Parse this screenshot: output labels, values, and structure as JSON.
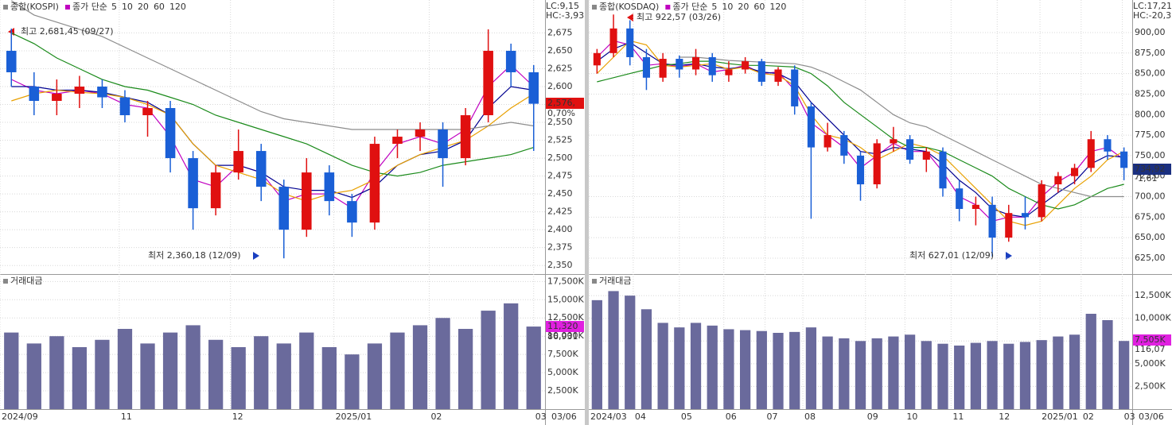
{
  "chart_data": [
    {
      "type": "candlestick",
      "title": "종합(KOSPI)",
      "legend_label": "종가 단순",
      "open": [
        2650,
        2600,
        2580,
        2590,
        2600,
        2585,
        2560,
        2570,
        2500,
        2430,
        2480,
        2510,
        2460,
        2400,
        2480,
        2440,
        2410,
        2520,
        2530,
        2540,
        2500,
        2560,
        2650,
        2620
      ],
      "high": [
        2681,
        2620,
        2610,
        2615,
        2610,
        2595,
        2580,
        2580,
        2510,
        2490,
        2540,
        2520,
        2470,
        2500,
        2490,
        2450,
        2530,
        2540,
        2550,
        2550,
        2570,
        2680,
        2660,
        2630
      ],
      "low": [
        2600,
        2560,
        2560,
        2570,
        2570,
        2550,
        2530,
        2480,
        2400,
        2420,
        2470,
        2440,
        2360,
        2390,
        2420,
        2390,
        2400,
        2500,
        2510,
        2460,
        2490,
        2550,
        2600,
        2510
      ],
      "close": [
        2620,
        2580,
        2590,
        2600,
        2585,
        2560,
        2570,
        2500,
        2430,
        2480,
        2510,
        2460,
        2400,
        2480,
        2440,
        2410,
        2520,
        2530,
        2540,
        2500,
        2560,
        2650,
        2620,
        2576
      ],
      "up_color": "#e01010",
      "down_color": "#1a5fd6",
      "ma": [
        {
          "period": 5,
          "color": "#c000c0",
          "values": [
            2610,
            2595,
            2590,
            2595,
            2590,
            2575,
            2570,
            2530,
            2470,
            2460,
            2490,
            2480,
            2440,
            2450,
            2450,
            2430,
            2480,
            2520,
            2530,
            2520,
            2540,
            2600,
            2630,
            2600
          ]
        },
        {
          "period": 10,
          "color": "#000090",
          "values": [
            2600,
            2600,
            2595,
            2595,
            2592,
            2585,
            2578,
            2560,
            2520,
            2490,
            2490,
            2480,
            2460,
            2455,
            2455,
            2445,
            2460,
            2490,
            2505,
            2510,
            2525,
            2570,
            2600,
            2595
          ]
        },
        {
          "period": 20,
          "color": "#e8a000",
          "values": [
            2580,
            2590,
            2595,
            2592,
            2590,
            2585,
            2575,
            2560,
            2520,
            2490,
            2480,
            2470,
            2450,
            2440,
            2450,
            2455,
            2470,
            2490,
            2505,
            2515,
            2525,
            2545,
            2570,
            2590
          ]
        },
        {
          "period": 60,
          "color": "#1a8a1a",
          "values": [
            2675,
            2660,
            2640,
            2625,
            2610,
            2600,
            2595,
            2585,
            2575,
            2560,
            2550,
            2540,
            2530,
            2520,
            2505,
            2490,
            2480,
            2475,
            2480,
            2490,
            2495,
            2500,
            2505,
            2515
          ]
        },
        {
          "period": 120,
          "color": "#8c8c8c",
          "values": [
            2720,
            2700,
            2690,
            2680,
            2670,
            2655,
            2640,
            2625,
            2610,
            2595,
            2580,
            2565,
            2555,
            2550,
            2545,
            2540,
            2540,
            2540,
            2540,
            2540,
            2540,
            2545,
            2550,
            2545
          ]
        }
      ],
      "ylim": [
        2338,
        2721
      ],
      "yticks": [
        {
          "value": 2350,
          "label": "2,350"
        },
        {
          "value": 2375,
          "label": "2,375"
        },
        {
          "value": 2400,
          "label": "2,400"
        },
        {
          "value": 2425,
          "label": "2,425"
        },
        {
          "value": 2450,
          "label": "2,450"
        },
        {
          "value": 2475,
          "label": "2,475"
        },
        {
          "value": 2500,
          "label": "2,500"
        },
        {
          "value": 2525,
          "label": "2,525"
        },
        {
          "value": 2550,
          "label": "2,550"
        },
        {
          "value": 2575,
          "label": "2,575"
        },
        {
          "value": 2600,
          "label": "2,600"
        },
        {
          "value": 2625,
          "label": "2,625"
        },
        {
          "value": 2650,
          "label": "2,650"
        },
        {
          "value": 2675,
          "label": "2,675"
        }
      ],
      "xticks": [
        {
          "value": 0,
          "label": "2024/09"
        },
        {
          "value": 5.25,
          "label": "11"
        },
        {
          "value": 10.15,
          "label": "12"
        },
        {
          "value": 14.7,
          "label": "2025/01"
        },
        {
          "value": 18.9,
          "label": "02"
        },
        {
          "value": 23.5,
          "label": "03"
        }
      ],
      "last_date": "03/06",
      "annotations": [
        "최고 2,681,45 (09/27)",
        "최저 2,360,18 (12/09)"
      ],
      "status": [
        "LC:9,15",
        "HC:-3,93"
      ],
      "tags": [
        "2,576,",
        "0,70%"
      ]
    },
    {
      "type": "bar",
      "title": "거래대금",
      "color": "#6a6a9c",
      "values": [
        10500,
        9000,
        10000,
        8500,
        9500,
        11000,
        9000,
        10500,
        11500,
        9500,
        8500,
        10000,
        9000,
        10500,
        8500,
        7500,
        9000,
        10500,
        11500,
        12500,
        11000,
        13500,
        14500,
        11320
      ],
      "ylim": [
        0,
        18300
      ],
      "yticks": [
        {
          "value": 2500,
          "label": "2,500K"
        },
        {
          "value": 5000,
          "label": "5,000K"
        },
        {
          "value": 7500,
          "label": "7,500K"
        },
        {
          "value": 10000,
          "label": "10,000K"
        },
        {
          "value": 12500,
          "label": "12,500K"
        },
        {
          "value": 15000,
          "label": "15,000K"
        },
        {
          "value": 17500,
          "label": "17,500K"
        }
      ],
      "tags": [
        "11,320",
        "86,931"
      ]
    },
    {
      "type": "candlestick",
      "title": "종합(KOSDAQ)",
      "legend_label": "종가 단순",
      "open": [
        860,
        875,
        905,
        870,
        845,
        868,
        855,
        870,
        848,
        855,
        865,
        840,
        855,
        810,
        760,
        775,
        750,
        715,
        765,
        770,
        745,
        755,
        710,
        685,
        690,
        650,
        680,
        675,
        715,
        725,
        735,
        770,
        755
      ],
      "high": [
        880,
        922,
        915,
        880,
        875,
        872,
        880,
        875,
        865,
        870,
        868,
        858,
        860,
        815,
        790,
        780,
        755,
        770,
        785,
        775,
        760,
        760,
        720,
        700,
        700,
        690,
        700,
        720,
        730,
        740,
        780,
        775,
        760
      ],
      "low": [
        850,
        870,
        860,
        830,
        840,
        845,
        848,
        840,
        840,
        850,
        835,
        835,
        800,
        673,
        755,
        740,
        695,
        710,
        755,
        740,
        730,
        700,
        670,
        665,
        627,
        645,
        660,
        670,
        705,
        715,
        730,
        745,
        720
      ],
      "close": [
        875,
        905,
        870,
        845,
        868,
        855,
        870,
        848,
        855,
        865,
        840,
        855,
        810,
        760,
        775,
        750,
        715,
        765,
        770,
        745,
        755,
        710,
        685,
        690,
        650,
        680,
        675,
        715,
        725,
        735,
        770,
        755,
        735
      ],
      "up_color": "#e01010",
      "down_color": "#1a5fd6",
      "ma": [
        {
          "period": 5,
          "color": "#c000c0",
          "values": [
            870,
            890,
            885,
            860,
            862,
            858,
            862,
            852,
            855,
            860,
            850,
            852,
            830,
            790,
            775,
            760,
            735,
            750,
            765,
            755,
            755,
            730,
            700,
            690,
            670,
            675,
            675,
            700,
            718,
            730,
            755,
            760,
            745
          ]
        },
        {
          "period": 10,
          "color": "#000090",
          "values": [
            865,
            880,
            888,
            875,
            862,
            860,
            862,
            858,
            856,
            858,
            852,
            850,
            840,
            815,
            795,
            775,
            755,
            752,
            760,
            758,
            755,
            740,
            720,
            705,
            685,
            678,
            675,
            690,
            705,
            718,
            740,
            750,
            748
          ]
        },
        {
          "period": 20,
          "color": "#e8a000",
          "values": [
            850,
            870,
            890,
            885,
            860,
            858,
            860,
            862,
            855,
            858,
            850,
            848,
            835,
            800,
            775,
            770,
            760,
            745,
            755,
            765,
            760,
            750,
            730,
            710,
            690,
            670,
            665,
            670,
            690,
            710,
            725,
            745,
            755
          ]
        },
        {
          "period": 60,
          "color": "#1a8a1a",
          "values": [
            840,
            845,
            850,
            855,
            860,
            862,
            865,
            865,
            862,
            860,
            860,
            859,
            858,
            850,
            835,
            815,
            800,
            785,
            770,
            760,
            760,
            755,
            745,
            735,
            725,
            710,
            700,
            690,
            685,
            690,
            700,
            710,
            715
          ]
        },
        {
          "period": 120,
          "color": "#8c8c8c",
          "values": [
            null,
            null,
            null,
            null,
            null,
            870,
            870,
            868,
            866,
            865,
            864,
            863,
            862,
            858,
            850,
            840,
            830,
            815,
            800,
            790,
            785,
            775,
            765,
            755,
            745,
            735,
            725,
            715,
            710,
            705,
            700,
            700,
            700
          ]
        }
      ],
      "ylim": [
        605.6,
        939.7
      ],
      "yticks": [
        {
          "value": 625,
          "label": "625,00"
        },
        {
          "value": 650,
          "label": "650,00"
        },
        {
          "value": 675,
          "label": "675,00"
        },
        {
          "value": 700,
          "label": "700,00"
        },
        {
          "value": 725,
          "label": "725,00"
        },
        {
          "value": 750,
          "label": "750,00"
        },
        {
          "value": 775,
          "label": "775,00"
        },
        {
          "value": 800,
          "label": "800,00"
        },
        {
          "value": 825,
          "label": "825,00"
        },
        {
          "value": 850,
          "label": "850,00"
        },
        {
          "value": 875,
          "label": "875,00"
        },
        {
          "value": 900,
          "label": "900,00"
        }
      ],
      "xticks": [
        {
          "value": 0,
          "label": "2024/03"
        },
        {
          "value": 2.7,
          "label": "04"
        },
        {
          "value": 5.5,
          "label": "05"
        },
        {
          "value": 8.2,
          "label": "06"
        },
        {
          "value": 10.7,
          "label": "07"
        },
        {
          "value": 13,
          "label": "08"
        },
        {
          "value": 16.8,
          "label": "09"
        },
        {
          "value": 19.2,
          "label": "10"
        },
        {
          "value": 22,
          "label": "11"
        },
        {
          "value": 24.8,
          "label": "12"
        },
        {
          "value": 27.4,
          "label": "2025/01"
        },
        {
          "value": 29.9,
          "label": "02"
        },
        {
          "value": 32.4,
          "label": "03"
        }
      ],
      "last_date": "03/06",
      "annotations": [
        "최고 922,57 (03/26)",
        "최저 627,01 (12/09)"
      ],
      "status": [
        "LC:17,21",
        "HC:-20,3"
      ],
      "tags": [
        "734,92",
        "-1,61"
      ]
    },
    {
      "type": "bar",
      "title": "거래대금",
      "color": "#6a6a9c",
      "values": [
        12000,
        13000,
        12500,
        11000,
        9500,
        9000,
        9500,
        9200,
        8800,
        8700,
        8600,
        8400,
        8500,
        9000,
        8000,
        7800,
        7500,
        7800,
        8000,
        8200,
        7500,
        7200,
        7000,
        7300,
        7500,
        7200,
        7400,
        7600,
        8000,
        8200,
        10500,
        9800,
        7505
      ],
      "ylim": [
        0,
        14700
      ],
      "yticks": [
        {
          "value": 2500,
          "label": "2,500K"
        },
        {
          "value": 5000,
          "label": "5,000K"
        },
        {
          "value": 7500,
          "label": "7,500K"
        },
        {
          "value": 10000,
          "label": "10,000K"
        },
        {
          "value": 12500,
          "label": "12,500K"
        }
      ],
      "tags": [
        "7,505K",
        "116,07"
      ]
    }
  ]
}
